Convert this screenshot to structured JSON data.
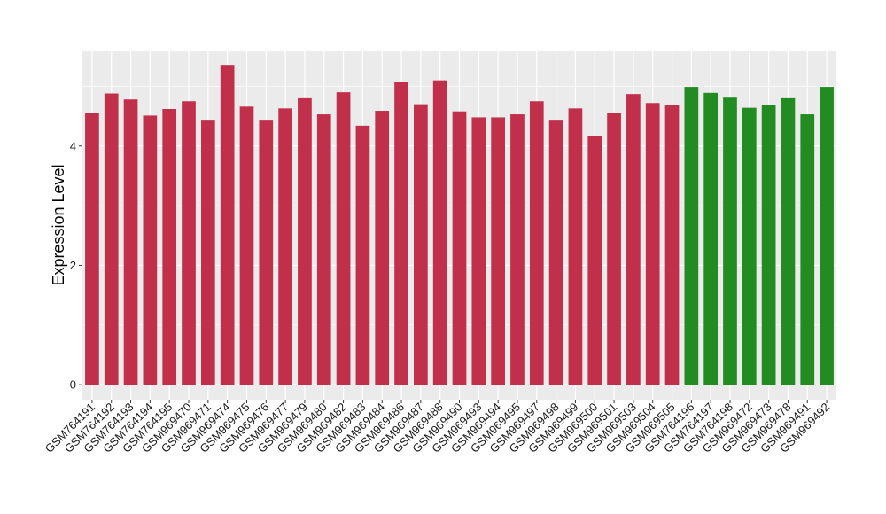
{
  "chart_data": {
    "type": "bar",
    "title": "",
    "xlabel": "",
    "ylabel": "Expression Level",
    "ylim": [
      -0.25,
      5.6
    ],
    "yticks": [
      0,
      2,
      4
    ],
    "grid": true,
    "legend": "none",
    "panel_color": "#ebebeb",
    "grid_color": "#ffffff",
    "categories": [
      "GSM764191",
      "GSM764192",
      "GSM764193",
      "GSM764194",
      "GSM764195",
      "GSM969470",
      "GSM969471",
      "GSM969474",
      "GSM969475",
      "GSM969476",
      "GSM969477",
      "GSM969479",
      "GSM969480",
      "GSM969482",
      "GSM969483",
      "GSM969484",
      "GSM969486",
      "GSM969487",
      "GSM969488",
      "GSM969490",
      "GSM969493",
      "GSM969494",
      "GSM969495",
      "GSM969497",
      "GSM969498",
      "GSM969499",
      "GSM969500",
      "GSM969501",
      "GSM969503",
      "GSM969504",
      "GSM969505",
      "GSM764196",
      "GSM764197",
      "GSM764198",
      "GSM969472",
      "GSM969473",
      "GSM969478",
      "GSM969491",
      "GSM969492"
    ],
    "values": [
      4.55,
      4.88,
      4.78,
      4.51,
      4.62,
      4.75,
      4.44,
      5.36,
      4.66,
      4.44,
      4.63,
      4.8,
      4.53,
      4.9,
      4.34,
      4.59,
      5.08,
      4.7,
      5.1,
      4.58,
      4.48,
      4.48,
      4.53,
      4.75,
      4.44,
      4.63,
      4.16,
      4.55,
      4.87,
      4.72,
      4.69,
      4.99,
      4.89,
      4.81,
      4.64,
      4.69,
      4.8,
      4.53,
      4.99
    ],
    "colors": [
      "#c1304a",
      "#c1304a",
      "#c1304a",
      "#c1304a",
      "#c1304a",
      "#c1304a",
      "#c1304a",
      "#c1304a",
      "#c1304a",
      "#c1304a",
      "#c1304a",
      "#c1304a",
      "#c1304a",
      "#c1304a",
      "#c1304a",
      "#c1304a",
      "#c1304a",
      "#c1304a",
      "#c1304a",
      "#c1304a",
      "#c1304a",
      "#c1304a",
      "#c1304a",
      "#c1304a",
      "#c1304a",
      "#c1304a",
      "#c1304a",
      "#c1304a",
      "#c1304a",
      "#c1304a",
      "#c1304a",
      "#228b22",
      "#228b22",
      "#228b22",
      "#228b22",
      "#228b22",
      "#228b22",
      "#228b22",
      "#228b22"
    ]
  }
}
